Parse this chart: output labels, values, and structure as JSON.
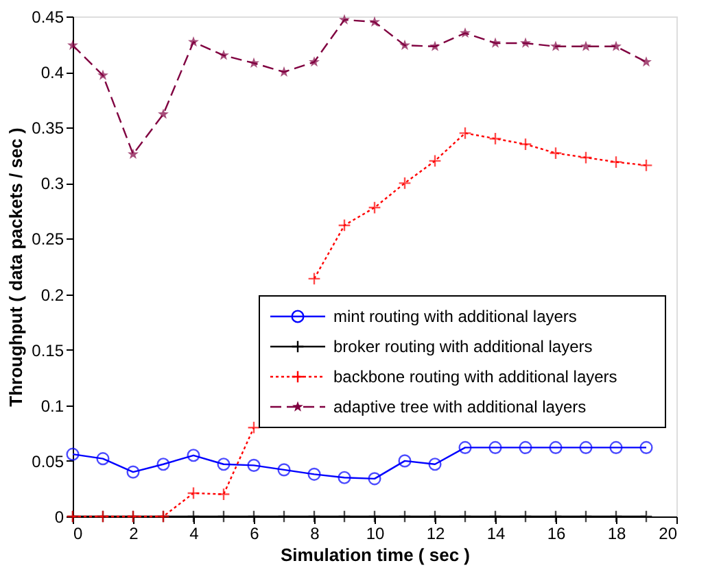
{
  "chart_data": {
    "type": "line",
    "xlabel": "Simulation time ( sec )",
    "ylabel": "Throughput ( data packets / sec )",
    "x": [
      0,
      1,
      2,
      3,
      4,
      5,
      6,
      7,
      8,
      9,
      10,
      11,
      12,
      13,
      14,
      15,
      16,
      17,
      18,
      19
    ],
    "xlim": [
      0,
      20
    ],
    "xticks": [
      0,
      2,
      4,
      6,
      8,
      10,
      12,
      14,
      16,
      18,
      20
    ],
    "ylim": [
      0,
      0.45
    ],
    "yticks": [
      0,
      0.05,
      0.1,
      0.15,
      0.2,
      0.25,
      0.3,
      0.35,
      0.4,
      0.45
    ],
    "grid": false,
    "legend": "bottom right",
    "series": [
      {
        "name": "mint routing with additional layers",
        "color": "#0000ff",
        "marker": "circle",
        "line_style": "solid",
        "values": [
          0.056,
          0.052,
          0.04,
          0.047,
          0.055,
          0.047,
          0.046,
          0.042,
          0.038,
          0.035,
          0.034,
          0.05,
          0.047,
          0.062,
          0.062,
          0.062,
          0.062,
          0.062,
          0.062,
          0.062
        ]
      },
      {
        "name": "broker routing with additional layers",
        "color": "#000000",
        "marker": "cross",
        "line_style": "solid",
        "values": [
          0,
          0,
          0,
          0,
          0,
          0,
          0,
          0,
          0,
          0,
          0,
          0,
          0,
          0,
          0,
          0,
          0,
          0,
          0,
          0
        ]
      },
      {
        "name": "backbone routing with additional layers",
        "color": "#ff0000",
        "marker": "cross",
        "line_style": "dotted",
        "values": [
          0,
          0,
          0,
          0,
          0.021,
          0.02,
          0.08,
          null,
          0.214,
          0.262,
          0.278,
          0.3,
          0.32,
          0.345,
          0.34,
          0.335,
          0.327,
          0.323,
          0.319,
          0.316
        ]
      },
      {
        "name": "adaptive tree with additional layers",
        "color": "#800040",
        "marker": "star",
        "line_style": "dashed",
        "values": [
          0.424,
          0.397,
          0.326,
          0.362,
          0.427,
          0.415,
          0.408,
          0.4,
          0.409,
          0.447,
          0.445,
          0.424,
          0.423,
          0.435,
          0.426,
          0.426,
          0.423,
          0.423,
          0.423,
          0.409
        ]
      }
    ]
  }
}
